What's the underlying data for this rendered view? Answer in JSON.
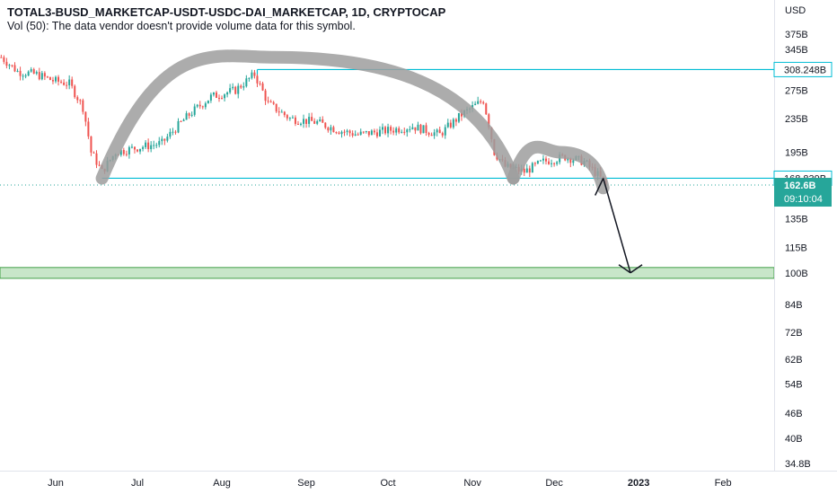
{
  "header": {
    "symbol_line": "TOTAL3-BUSD_MARKETCAP-USDT-USDC-DAI_MARKETCAP, 1D, CRYPTOCAP",
    "volume_note": "Vol (50): The data vendor doesn't provide volume data for this symbol."
  },
  "colors": {
    "up": "#26a69a",
    "down": "#ef5350",
    "hline": "#00bcd4",
    "arc": "#9e9e9e",
    "zone_fill": "#c8e6c9",
    "zone_border": "#43a047",
    "price_tag": "#26a69a",
    "arrow": "#131722"
  },
  "chart_data": {
    "type": "candlestick",
    "y_scale": "log",
    "ylabel": "USD",
    "y_ticks": [
      "375B",
      "345B",
      "275B",
      "235B",
      "195B",
      "135B",
      "115B",
      "100B",
      "84B",
      "72B",
      "62B",
      "54B",
      "46B",
      "40B",
      "34.8B"
    ],
    "x_ticks": [
      "Jun",
      "Jul",
      "Aug",
      "Sep",
      "Oct",
      "Nov",
      "Dec",
      "2023",
      "Feb"
    ],
    "horizontal_lines": [
      {
        "label": "308.248B",
        "value": 308.248
      },
      {
        "label": "168.839B",
        "value": 168.839
      }
    ],
    "zone": {
      "low": 97,
      "high": 103
    },
    "last_price": {
      "label": "162.6B",
      "countdown": "09:10:04",
      "value": 162.6
    },
    "close_series": [
      {
        "date": "2022-05-12",
        "close": 330
      },
      {
        "date": "2022-05-18",
        "close": 305
      },
      {
        "date": "2022-05-25",
        "close": 300
      },
      {
        "date": "2022-05-31",
        "close": 290
      },
      {
        "date": "2022-06-06",
        "close": 285
      },
      {
        "date": "2022-06-11",
        "close": 250
      },
      {
        "date": "2022-06-14",
        "close": 195
      },
      {
        "date": "2022-06-18",
        "close": 175
      },
      {
        "date": "2022-06-23",
        "close": 195
      },
      {
        "date": "2022-07-01",
        "close": 200
      },
      {
        "date": "2022-07-10",
        "close": 205
      },
      {
        "date": "2022-07-20",
        "close": 240
      },
      {
        "date": "2022-07-28",
        "close": 265
      },
      {
        "date": "2022-08-06",
        "close": 275
      },
      {
        "date": "2022-08-13",
        "close": 300
      },
      {
        "date": "2022-08-18",
        "close": 255
      },
      {
        "date": "2022-08-26",
        "close": 235
      },
      {
        "date": "2022-09-05",
        "close": 230
      },
      {
        "date": "2022-09-13",
        "close": 220
      },
      {
        "date": "2022-09-20",
        "close": 215
      },
      {
        "date": "2022-10-01",
        "close": 220
      },
      {
        "date": "2022-10-10",
        "close": 225
      },
      {
        "date": "2022-10-20",
        "close": 215
      },
      {
        "date": "2022-10-28",
        "close": 240
      },
      {
        "date": "2022-11-05",
        "close": 260
      },
      {
        "date": "2022-11-09",
        "close": 195
      },
      {
        "date": "2022-11-13",
        "close": 180
      },
      {
        "date": "2022-11-20",
        "close": 175
      },
      {
        "date": "2022-11-27",
        "close": 185
      },
      {
        "date": "2022-12-05",
        "close": 190
      },
      {
        "date": "2022-12-12",
        "close": 185
      },
      {
        "date": "2022-12-17",
        "close": 172
      },
      {
        "date": "2022-12-20",
        "close": 162.6
      }
    ],
    "annotations": [
      {
        "kind": "rounded-top-arc",
        "from": {
          "date": "2022-06-18",
          "value": 168.8
        },
        "peak": {
          "date": "2022-08-20",
          "value": 330
        },
        "to": {
          "date": "2022-11-16",
          "value": 168.8
        }
      },
      {
        "kind": "rounded-top-arc",
        "from": {
          "date": "2022-11-16",
          "value": 168.8
        },
        "peak": {
          "date": "2022-12-03",
          "value": 195
        },
        "to": {
          "date": "2022-12-19",
          "value": 160
        }
      },
      {
        "kind": "arrow",
        "from": {
          "date": "2022-12-19",
          "value": 168.8
        },
        "to": {
          "date": "2022-12-29",
          "value": 100
        }
      }
    ]
  }
}
